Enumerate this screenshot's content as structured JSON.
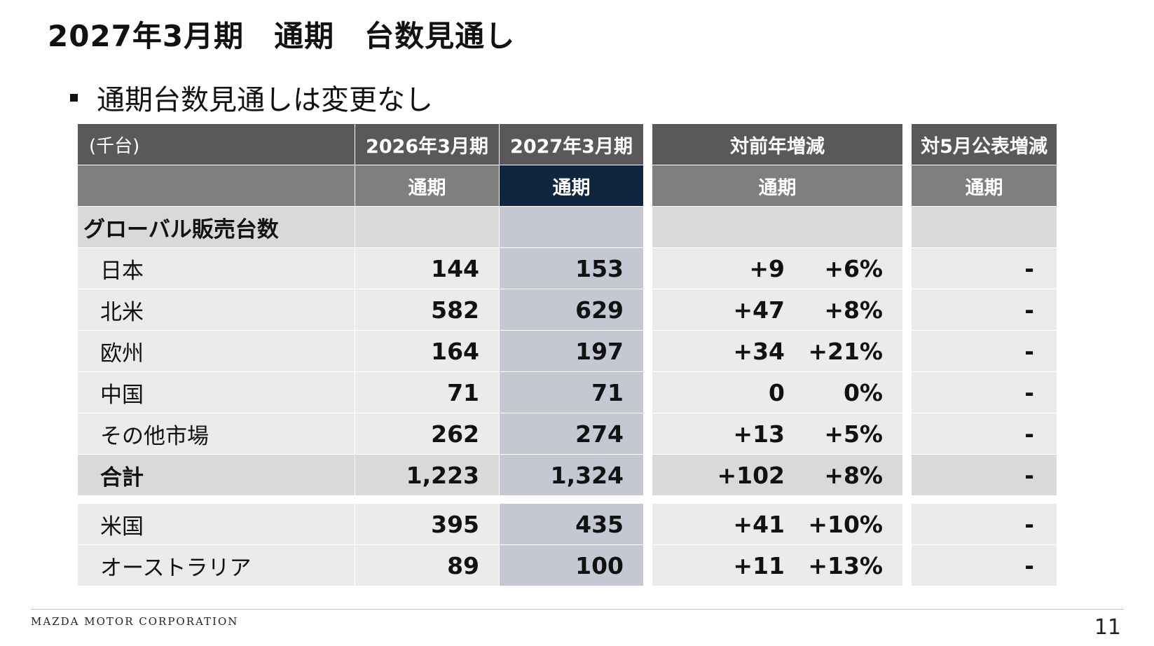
{
  "page": {
    "title": "2027年3月期　通期　台数見通し",
    "bullet": "通期台数見通しは変更なし"
  },
  "table": {
    "header": {
      "unit": "(千台)",
      "col_fy2026": "2026年3月期",
      "col_fy2027": "2027年3月期",
      "col_yoy": "対前年増減",
      "col_vs_may": "対5月公表増減"
    },
    "subheader": {
      "fy2026": "通期",
      "fy2027": "通期",
      "yoy": "通期",
      "vs_may": "通期"
    },
    "group_label": "グローバル販売台数",
    "rows": [
      {
        "label": "日本",
        "fy2026": "144",
        "fy2027": "153",
        "yoy_abs": "+9",
        "yoy_pct": "+6%",
        "vs_may": "-"
      },
      {
        "label": "北米",
        "fy2026": "582",
        "fy2027": "629",
        "yoy_abs": "+47",
        "yoy_pct": "+8%",
        "vs_may": "-"
      },
      {
        "label": "欧州",
        "fy2026": "164",
        "fy2027": "197",
        "yoy_abs": "+34",
        "yoy_pct": "+21%",
        "vs_may": "-"
      },
      {
        "label": "中国",
        "fy2026": "71",
        "fy2027": "71",
        "yoy_abs": "0",
        "yoy_pct": "0%",
        "vs_may": "-"
      },
      {
        "label": "その他市場",
        "fy2026": "262",
        "fy2027": "274",
        "yoy_abs": "+13",
        "yoy_pct": "+5%",
        "vs_may": "-"
      }
    ],
    "total": {
      "label": "合計",
      "fy2026": "1,223",
      "fy2027": "1,324",
      "yoy_abs": "+102",
      "yoy_pct": "+8%",
      "vs_may": "-"
    },
    "extra_rows": [
      {
        "label": "米国",
        "fy2026": "395",
        "fy2027": "435",
        "yoy_abs": "+41",
        "yoy_pct": "+10%",
        "vs_may": "-"
      },
      {
        "label": "オーストラリア",
        "fy2026": "89",
        "fy2027": "100",
        "yoy_abs": "+11",
        "yoy_pct": "+13%",
        "vs_may": "-"
      }
    ]
  },
  "footer": {
    "company": "MAZDA MOTOR CORPORATION",
    "page_number": "11"
  },
  "colors": {
    "header_dark": "#595959",
    "header_mid": "#7f7f7f",
    "header_highlight": "#0f2540",
    "row_bg": "#ebebeb",
    "row_highlight": "#c4c8d3"
  }
}
